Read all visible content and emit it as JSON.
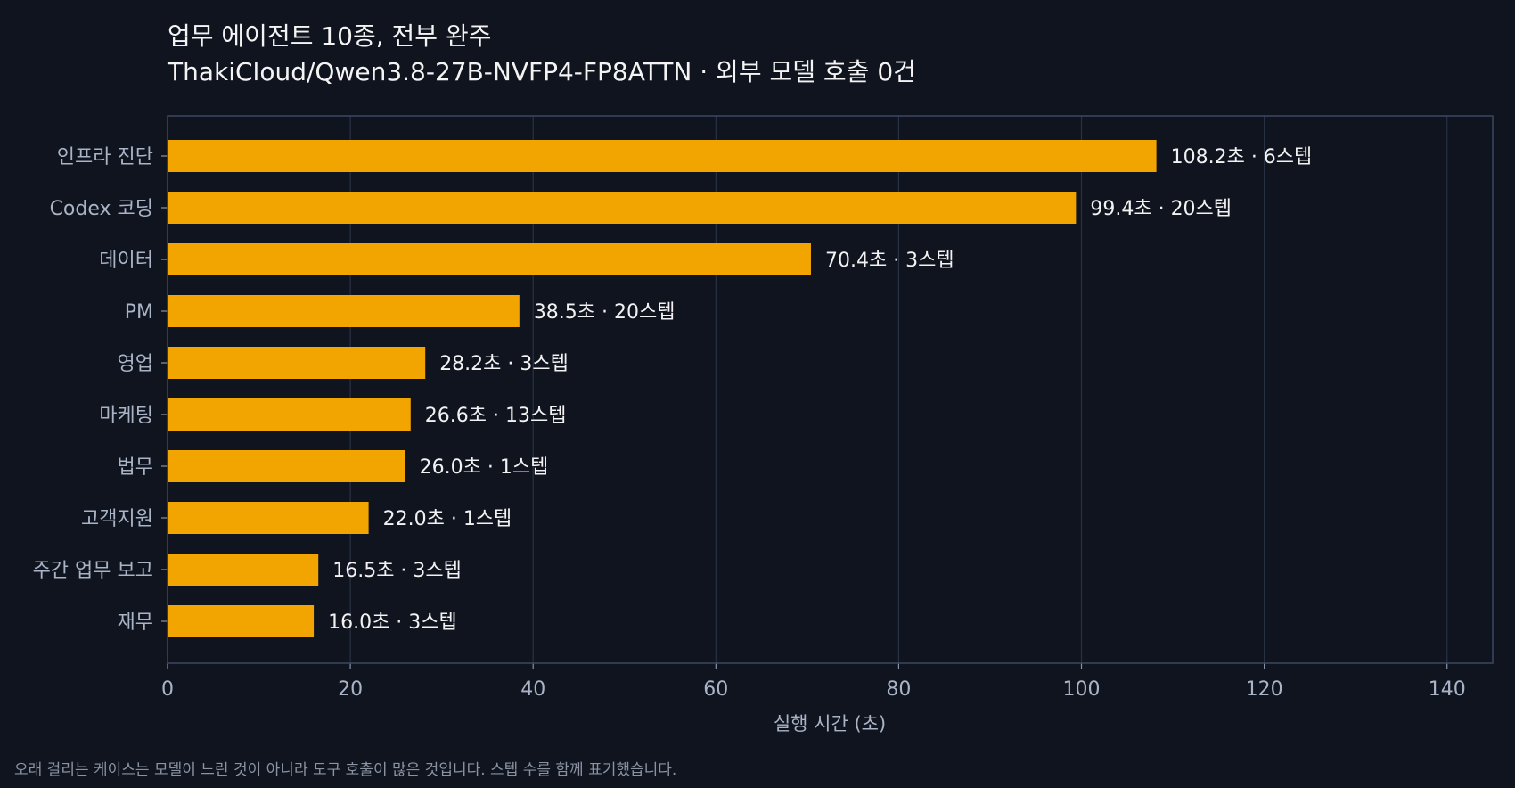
{
  "chart_data": {
    "type": "bar",
    "orientation": "horizontal",
    "title": "업무 에이전트 10종, 전부 완주",
    "subtitle": "ThakiCloud/Qwen3.8-27B-NVFP4-FP8ATTN · 외부 모델 호출 0건",
    "xlabel": "실행 시간 (초)",
    "ylabel": "",
    "xlim": [
      0,
      145
    ],
    "xticks": [
      0,
      20,
      40,
      60,
      80,
      100,
      120,
      140
    ],
    "grid": "vertical",
    "categories": [
      "인프라 진단",
      "Codex 코딩",
      "데이터",
      "PM",
      "영업",
      "마케팅",
      "법무",
      "고객지원",
      "주간 업무 보고",
      "재무"
    ],
    "values": [
      108.2,
      99.4,
      70.4,
      38.5,
      28.2,
      26.6,
      26.0,
      22.0,
      16.5,
      16.0
    ],
    "data_labels": [
      "108.2초 · 6스텝",
      "99.4초 · 20스텝",
      "70.4초 · 3스텝",
      "38.5초 · 20스텝",
      "28.2초 · 3스텝",
      "26.6초 · 13스텝",
      "26.0초 · 1스텝",
      "22.0초 · 1스텝",
      "16.5초 · 3스텝",
      "16.0초 · 3스텝"
    ],
    "steps": [
      6,
      20,
      3,
      20,
      3,
      13,
      1,
      1,
      3,
      3
    ],
    "footnote": "오래 걸리는 케이스는 모델이 느린 것이 아니라 도구 호출이 많은 것입니다. 스텝 수를 함께 표기했습니다.",
    "colors": {
      "background": "#10141f",
      "bar": "#f2a500",
      "grid": "#283245",
      "axis": "#3a4660"
    }
  }
}
